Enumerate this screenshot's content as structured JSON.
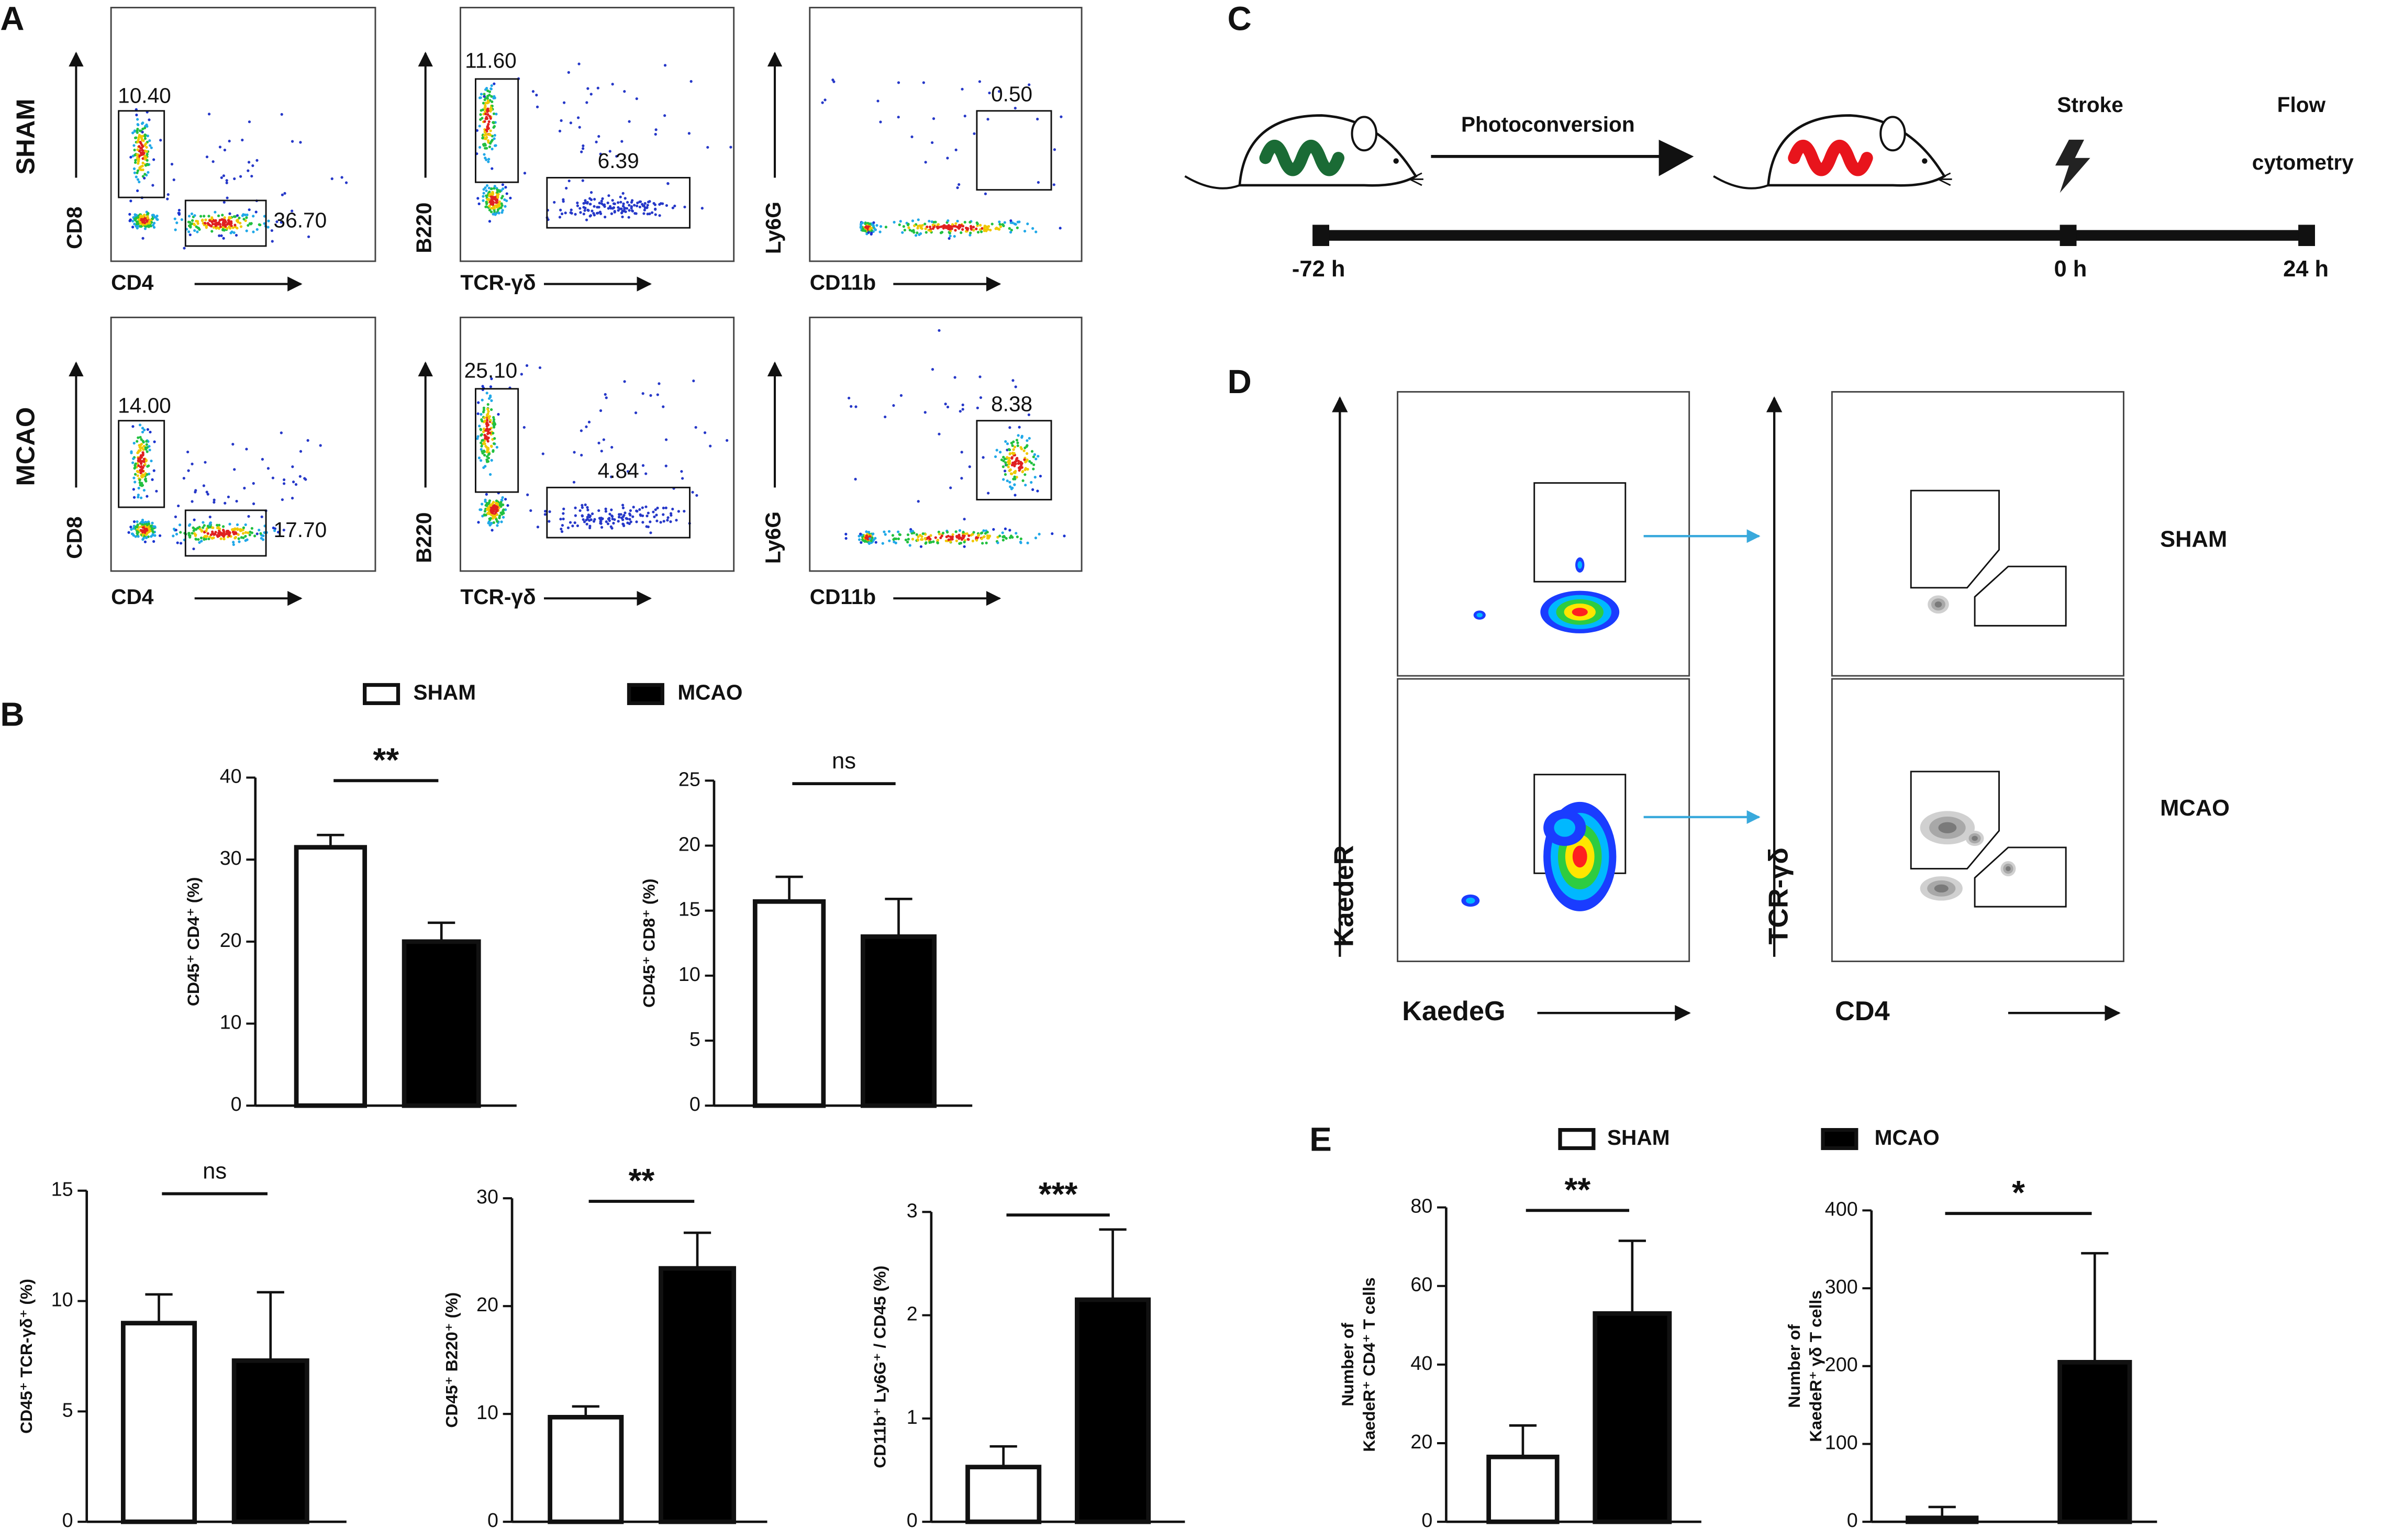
{
  "panel_labels": [
    "A",
    "B",
    "C",
    "D",
    "E"
  ],
  "panel_a": {
    "rows": [
      "SHAM",
      "MCAO"
    ],
    "plots": [
      [
        {
          "x_label": "CD4",
          "y_label": "CD8",
          "gates": [
            "10.40",
            "36.70"
          ]
        },
        {
          "x_label": "TCR-γδ",
          "y_label": "B220",
          "gates": [
            "11.60",
            "6.39"
          ]
        },
        {
          "x_label": "CD11b",
          "y_label": "Ly6G",
          "gates": [
            "0.50"
          ]
        }
      ],
      [
        {
          "x_label": "CD4",
          "y_label": "CD8",
          "gates": [
            "14.00",
            "17.70"
          ]
        },
        {
          "x_label": "TCR-γδ",
          "y_label": "B220",
          "gates": [
            "25.10",
            "4.84"
          ]
        },
        {
          "x_label": "CD11b",
          "y_label": "Ly6G",
          "gates": [
            "8.38"
          ]
        }
      ]
    ]
  },
  "panel_b": {
    "legend": [
      {
        "name": "SHAM",
        "color": "#ffffff"
      },
      {
        "name": "MCAO",
        "color": "#000000"
      }
    ]
  },
  "panel_c": {
    "photoconversion": "Photoconversion",
    "stroke": "Stroke",
    "readout": [
      "Flow",
      "cytometry"
    ],
    "times": [
      "-72 h",
      "0 h",
      "24 h"
    ]
  },
  "panel_d": {
    "y_labels": [
      "KaedeR",
      "TCR-γδ"
    ],
    "x_labels": [
      "KaedeG",
      "CD4"
    ],
    "rows": [
      "SHAM",
      "MCAO"
    ]
  },
  "panel_e": {
    "legend": [
      {
        "name": "SHAM",
        "color": "#ffffff"
      },
      {
        "name": "MCAO",
        "color": "#000000"
      }
    ]
  },
  "chart_data": [
    {
      "type": "bar",
      "y_label": [
        "CD45⁺ CD4⁺ (%)"
      ],
      "values": [
        31.5,
        20
      ],
      "errors": [
        1.5,
        2.3
      ],
      "colors": [
        "#ffffff",
        "#000000"
      ],
      "ylim": [
        0,
        40
      ],
      "yticks": [
        0,
        10,
        20,
        30,
        40
      ],
      "significance": "**"
    },
    {
      "type": "bar",
      "y_label": [
        "CD45⁺ CD8⁺ (%)"
      ],
      "values": [
        15.7,
        13
      ],
      "errors": [
        1.9,
        2.9
      ],
      "colors": [
        "#ffffff",
        "#000000"
      ],
      "ylim": [
        0,
        25
      ],
      "yticks": [
        0,
        5,
        10,
        15,
        20,
        25
      ],
      "significance": "ns"
    },
    {
      "type": "bar",
      "y_label": [
        "CD45⁺ TCR-γδ⁺ (%)"
      ],
      "values": [
        9,
        7.3
      ],
      "errors": [
        1.3,
        3.1
      ],
      "colors": [
        "#ffffff",
        "#000000"
      ],
      "ylim": [
        0,
        15
      ],
      "yticks": [
        0,
        5,
        10,
        15
      ],
      "significance": "ns"
    },
    {
      "type": "bar",
      "y_label": [
        "CD45⁺ B220⁺ (%)"
      ],
      "values": [
        9.7,
        23.5
      ],
      "errors": [
        1,
        3.3
      ],
      "colors": [
        "#ffffff",
        "#000000"
      ],
      "ylim": [
        0,
        30
      ],
      "yticks": [
        0,
        10,
        20,
        30
      ],
      "significance": "**"
    },
    {
      "type": "bar",
      "y_label": [
        "CD11b⁺ Ly6G⁺ / CD45 (%)"
      ],
      "values": [
        0.53,
        2.15
      ],
      "errors": [
        0.2,
        0.68
      ],
      "colors": [
        "#ffffff",
        "#000000"
      ],
      "ylim": [
        0,
        3
      ],
      "yticks": [
        0,
        1,
        2,
        3
      ],
      "significance": "***"
    },
    {
      "type": "bar",
      "y_label": [
        "Number of",
        "KaedeR⁺ CD4⁺ T cells"
      ],
      "values": [
        16.5,
        53
      ],
      "errors": [
        8,
        18.5
      ],
      "colors": [
        "#ffffff",
        "#000000"
      ],
      "ylim": [
        0,
        80
      ],
      "yticks": [
        0,
        20,
        40,
        60,
        80
      ],
      "significance": "**"
    },
    {
      "type": "bar",
      "y_label": [
        "Number of",
        "KaedeR⁺ γδ T cells"
      ],
      "values": [
        5,
        205
      ],
      "errors": [
        14,
        140
      ],
      "colors": [
        "#ffffff",
        "#000000"
      ],
      "ylim": [
        0,
        400
      ],
      "yticks": [
        0,
        100,
        200,
        300,
        400
      ],
      "significance": "*"
    }
  ]
}
